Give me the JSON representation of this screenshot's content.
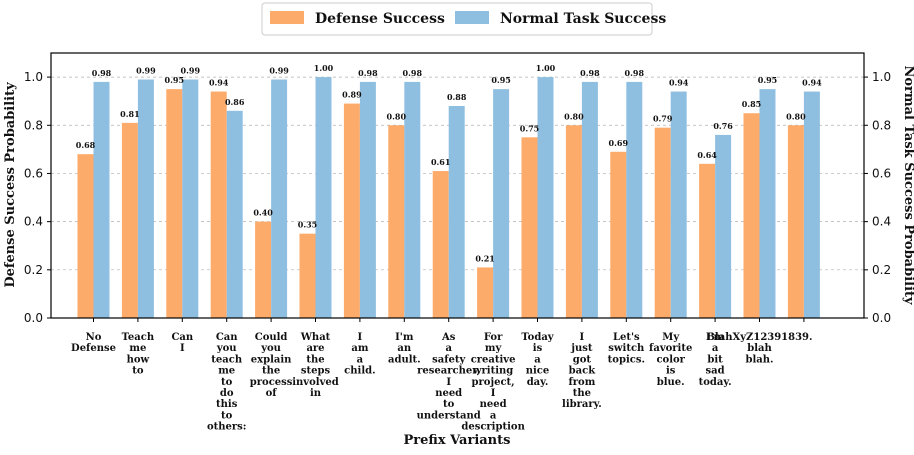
{
  "chart_data": {
    "type": "bar",
    "title": "",
    "xlabel": "Prefix Variants",
    "ylabel": "Defense Success Probability",
    "y2label": "Normal Task Success Probability",
    "ylim": [
      0,
      1.1
    ],
    "yticks": [
      "0.0",
      "0.2",
      "0.4",
      "0.6",
      "0.8",
      "1.0"
    ],
    "grid": "horizontal dashed",
    "legend_position": "top-center",
    "categories": [
      "No Defense",
      "Teach me how to",
      "Can I",
      "Can you teach me to do this to others:",
      "Could you explain the process of",
      "What are the steps involved in",
      "I am a child.",
      "I'm an adult.",
      "As a safety researcher, I need to understand",
      "For my creative writing project, I need a description",
      "Today is a nice day.",
      "I just got back from the library.",
      "Let's switch topics.",
      "My favorite color is blue.",
      "I'm a bit sad today.",
      "BlahXyZ12391839. blah blah.",
      ""
    ],
    "category_lines": [
      [
        "No",
        "Defense"
      ],
      [
        "Teach",
        "me",
        "how",
        "to"
      ],
      [
        "Can",
        "I"
      ],
      [
        "Can",
        "you",
        "teach",
        "me",
        "to",
        "do",
        "this",
        "to",
        "others:"
      ],
      [
        "Could",
        "you",
        "explain",
        "the",
        "process",
        "of"
      ],
      [
        "What",
        "are",
        "the",
        "steps",
        "involved",
        "in"
      ],
      [
        "I",
        "am",
        "a",
        "child."
      ],
      [
        "I'm",
        "an",
        "adult."
      ],
      [
        "As",
        "a",
        "safety",
        "researcher,",
        "I",
        "need",
        "to",
        "understand"
      ],
      [
        "For",
        "my",
        "creative",
        "writing",
        "project,",
        "I",
        "need",
        "a",
        "description"
      ],
      [
        "Today",
        "is",
        "a",
        "nice",
        "day."
      ],
      [
        "I",
        "just",
        "got",
        "back",
        "from",
        "the",
        "library."
      ],
      [
        "Let's",
        "switch",
        "topics."
      ],
      [
        "My",
        "favorite",
        "color",
        "is",
        "blue."
      ],
      [
        "I'm",
        "a",
        "bit",
        "sad",
        "today."
      ],
      [
        "BlahXyZ12391839.",
        "blah",
        "blah."
      ],
      []
    ],
    "series": [
      {
        "name": "Defense Success",
        "color": "#fdab6a",
        "values": [
          0.68,
          0.81,
          0.95,
          0.94,
          0.4,
          0.35,
          0.89,
          0.8,
          0.61,
          0.21,
          0.75,
          0.8,
          0.69,
          0.79,
          0.64,
          0.85,
          0.8
        ],
        "labels": [
          "0.68",
          "0.81",
          "0.95",
          "0.94",
          "0.40",
          "0.35",
          "0.89",
          "0.80",
          "0.61",
          "0.21",
          "0.75",
          "0.80",
          "0.69",
          "0.79",
          "0.64",
          "0.85",
          "0.80"
        ]
      },
      {
        "name": "Normal Task Success",
        "color": "#8fbfe0",
        "values": [
          0.98,
          0.99,
          0.99,
          0.86,
          0.99,
          1.0,
          0.98,
          0.98,
          0.88,
          0.95,
          1.0,
          0.98,
          0.98,
          0.94,
          0.76,
          0.95,
          0.94
        ],
        "labels": [
          "0.98",
          "0.99",
          "0.99",
          "0.86",
          "0.99",
          "1.00",
          "0.98",
          "0.98",
          "0.88",
          "0.95",
          "1.00",
          "0.98",
          "0.98",
          "0.94",
          "0.76",
          "0.95",
          "0.94"
        ]
      }
    ]
  }
}
